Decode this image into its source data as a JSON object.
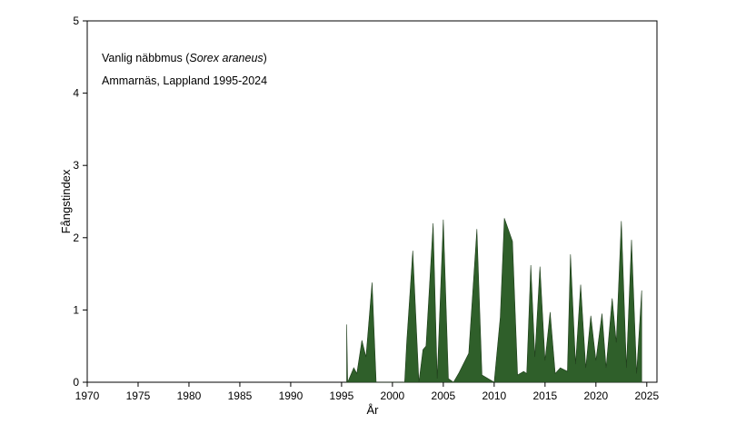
{
  "chart_data": {
    "type": "area",
    "annotation": {
      "line1_prefix": "Vanlig näbbmus (",
      "line1_species": "Sorex araneus",
      "line1_suffix": ")",
      "line2": "Ammarnäs, Lappland 1995-2024"
    },
    "xlabel": "År",
    "ylabel": "Fångstindex",
    "xlim": [
      1970,
      2026
    ],
    "ylim": [
      0,
      5
    ],
    "x_ticks": [
      1970,
      1975,
      1980,
      1985,
      1990,
      1995,
      2000,
      2005,
      2010,
      2015,
      2020,
      2025
    ],
    "y_ticks": [
      0,
      1,
      2,
      3,
      4,
      5
    ],
    "grid": false,
    "fill_color": "#2f5f2a",
    "series": [
      {
        "x": [
          1995.5,
          1995.6,
          1996.2,
          1996.5,
          1997.0,
          1997.4,
          1998.0,
          1998.4,
          1998.5,
          2001.2,
          2001.4,
          2002.0,
          2002.6,
          2003.0,
          2003.3,
          2004.0,
          2004.4,
          2005.0,
          2005.5,
          2006.0,
          2006.5,
          2007.5,
          2008.3,
          2008.8,
          2010.0,
          2010.6,
          2011.0,
          2011.8,
          2012.3,
          2012.9,
          2013.2,
          2013.6,
          2014.0,
          2014.5,
          2015.0,
          2015.5,
          2016.0,
          2016.5,
          2017.2,
          2017.5,
          2018.0,
          2018.5,
          2019.0,
          2019.5,
          2020.0,
          2020.6,
          2021.0,
          2021.6,
          2022.0,
          2022.5,
          2023.0,
          2023.5,
          2024.0,
          2024.5
        ],
        "y": [
          0.8,
          0.0,
          0.2,
          0.12,
          0.58,
          0.35,
          1.38,
          0.0,
          0.0,
          0.0,
          0.55,
          1.82,
          0.0,
          0.45,
          0.5,
          2.2,
          0.05,
          2.25,
          0.05,
          0.0,
          0.12,
          0.4,
          2.12,
          0.1,
          0.0,
          0.9,
          2.27,
          1.95,
          0.1,
          0.15,
          0.12,
          1.62,
          0.35,
          1.6,
          0.3,
          0.97,
          0.12,
          0.2,
          0.15,
          1.77,
          0.25,
          1.35,
          0.2,
          0.92,
          0.3,
          0.95,
          0.2,
          1.16,
          0.55,
          2.23,
          0.2,
          1.97,
          0.12,
          1.27
        ]
      }
    ]
  }
}
